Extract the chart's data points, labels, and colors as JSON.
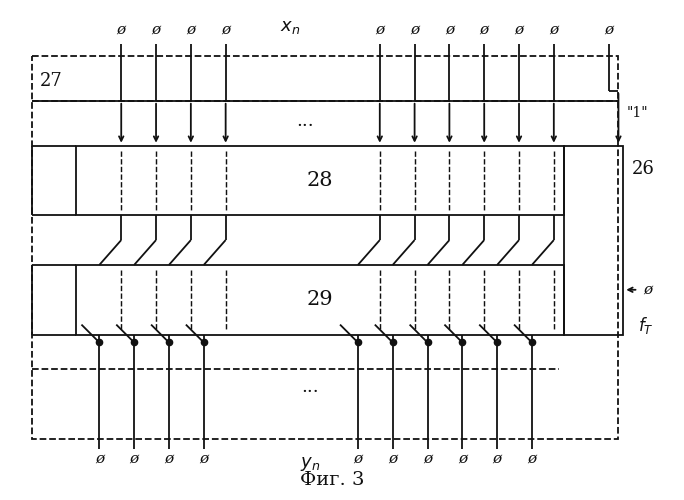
{
  "title": "Фиг. 3",
  "background_color": "#ffffff",
  "line_color": "#111111",
  "lw": 1.3,
  "fig_width": 6.84,
  "fig_height": 5.0,
  "dpi": 100,
  "box27_label": "27",
  "box28_label": "28",
  "box29_label": "29",
  "box26_label": "26",
  "xn_label": "x_n",
  "yn_label": "y_n",
  "one_label": "\"1\"",
  "ft_label": "f_T",
  "phi_symbol": "ø",
  "note_dots": "...",
  "figcap": "Фиг. 3"
}
